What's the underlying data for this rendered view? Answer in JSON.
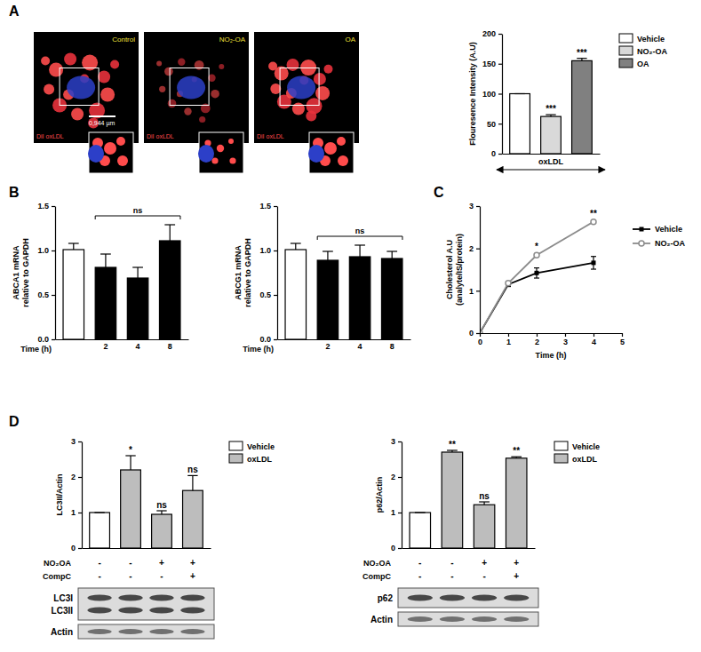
{
  "panel_labels": [
    "A",
    "B",
    "C",
    "D"
  ],
  "micrographs": [
    {
      "title": "Control",
      "stain": "DiI oxLDL"
    },
    {
      "title": "NO₂-OA",
      "stain": "DiI oxLDL"
    },
    {
      "title": "OA",
      "stain": "DiI oxLDL"
    }
  ],
  "scale_bar": "0,944 µm",
  "blots": [
    {
      "bands": [
        "LC3I",
        "LC3II"
      ],
      "loading": "Actin"
    },
    {
      "bands": [
        "p62"
      ],
      "loading": "Actin"
    }
  ],
  "chart_data": [
    {
      "type": "bar",
      "categories": [
        "Vehicle",
        "NO₂-OA",
        "OA"
      ],
      "values": [
        100,
        62,
        155
      ],
      "errors": [
        0,
        3,
        4
      ],
      "colors": [
        "#ffffff",
        "#d9d9d9",
        "#808080"
      ],
      "significance": [
        null,
        "***",
        "***"
      ],
      "y_label": [
        "Flouresence Intensity (A.U)"
      ],
      "x_label": "oxLDL",
      "ylim": [
        0,
        200
      ],
      "yticks": [
        0,
        50,
        100,
        150,
        200
      ],
      "legend": "right",
      "tick_labels": "y"
    },
    {
      "type": "bar",
      "categories": [
        null,
        "2",
        "4",
        "8"
      ],
      "values": [
        1.01,
        0.81,
        0.69,
        1.11
      ],
      "errors": [
        0.07,
        0.15,
        0.12,
        0.18
      ],
      "colors": [
        "#ffffff",
        "#000000",
        "#000000",
        "#000000"
      ],
      "bracket_label": "ns",
      "y_label": [
        "ABCA1 mRNA",
        "relative to GAPDH"
      ],
      "x_label": "Time (h)",
      "ylim": [
        0,
        1.5
      ],
      "yticks": [
        {
          "value": 0,
          "label": "0.0"
        },
        0.5,
        {
          "value": 1,
          "label": "1.0"
        },
        1.5
      ]
    },
    {
      "type": "bar",
      "categories": [
        null,
        "2",
        "4",
        "8"
      ],
      "values": [
        1.01,
        0.89,
        0.93,
        0.91
      ],
      "errors": [
        0.07,
        0.1,
        0.13,
        0.08
      ],
      "colors": [
        "#ffffff",
        "#000000",
        "#000000",
        "#000000"
      ],
      "bracket_label": "ns",
      "y_label": [
        "ABCG1 mRNA",
        "relative to GAPDH"
      ],
      "x_label": "Time (h)",
      "ylim": [
        0,
        1.5
      ],
      "yticks": [
        {
          "value": 0,
          "label": "0.0"
        },
        0.5,
        {
          "value": 1,
          "label": "1.0"
        },
        1.5
      ]
    },
    {
      "type": "line",
      "x": [
        0,
        1,
        2,
        4
      ],
      "series": [
        {
          "name": "Vehicle",
          "color": "#000000",
          "marker": "square",
          "values": [
            0,
            1.15,
            1.42,
            1.66
          ],
          "errors": [
            0,
            0.05,
            0.12,
            0.15
          ]
        },
        {
          "name": "NO₂-OA",
          "color": "#8c8c8c",
          "marker": "circle",
          "values": [
            0,
            1.18,
            1.84,
            2.63
          ],
          "errors": [
            0,
            0.04,
            0.04,
            0.03
          ]
        }
      ],
      "significance": [
        {
          "x": 2,
          "text": "*"
        },
        {
          "x": 4,
          "text": "**"
        }
      ],
      "x_label": "Time (h)",
      "y_label": [
        "Cholesterol A.U",
        "(analyte/IS/protein)"
      ],
      "xlim": [
        0,
        5
      ],
      "xticks": [
        0,
        1,
        2,
        3,
        4,
        5
      ],
      "ylim": [
        0,
        3
      ],
      "yticks": [
        0,
        1,
        2,
        3
      ],
      "legend": "right"
    },
    {
      "type": "bar",
      "categories": [
        null,
        null,
        null,
        null
      ],
      "series": [
        {
          "name": "Vehicle",
          "color": "#ffffff",
          "values": [
            1,
            null,
            null,
            null
          ],
          "errors": [
            0,
            null,
            null,
            null
          ]
        },
        {
          "name": "oxLDL",
          "color": "#bdbdbd",
          "values": [
            null,
            2.2,
            0.95,
            1.62
          ],
          "errors": [
            null,
            0.4,
            0.1,
            0.42
          ]
        }
      ],
      "significance": [
        null,
        "*",
        "ns",
        "ns"
      ],
      "conditions": [
        {
          "name": "NO₂OA",
          "values": [
            "-",
            "-",
            "+",
            "+"
          ]
        },
        {
          "name": "CompC",
          "values": [
            "-",
            "-",
            "-",
            "+"
          ]
        }
      ],
      "y_label": [
        "LC3II/Actin"
      ],
      "ylim": [
        0,
        3
      ],
      "yticks": [
        0,
        1,
        2,
        3
      ],
      "legend": "right",
      "tick_labels": "y"
    },
    {
      "type": "bar",
      "categories": [
        null,
        null,
        null,
        null
      ],
      "series": [
        {
          "name": "Vehicle",
          "color": "#ffffff",
          "values": [
            1,
            null,
            null,
            null
          ],
          "errors": [
            0,
            null,
            null,
            null
          ]
        },
        {
          "name": "oxLDL",
          "color": "#bdbdbd",
          "values": [
            null,
            2.7,
            1.22,
            2.53
          ],
          "errors": [
            null,
            0.05,
            0.08,
            0.04
          ]
        }
      ],
      "significance": [
        null,
        "**",
        "ns",
        "**"
      ],
      "conditions": [
        {
          "name": "NO₂OA",
          "values": [
            "-",
            "-",
            "+",
            "+"
          ]
        },
        {
          "name": "CompC",
          "values": [
            "-",
            "-",
            "-",
            "+"
          ]
        }
      ],
      "y_label": [
        "p62/Actin"
      ],
      "ylim": [
        0,
        3
      ],
      "yticks": [
        0,
        1,
        2,
        3
      ],
      "legend": "right",
      "tick_labels": "y"
    }
  ]
}
